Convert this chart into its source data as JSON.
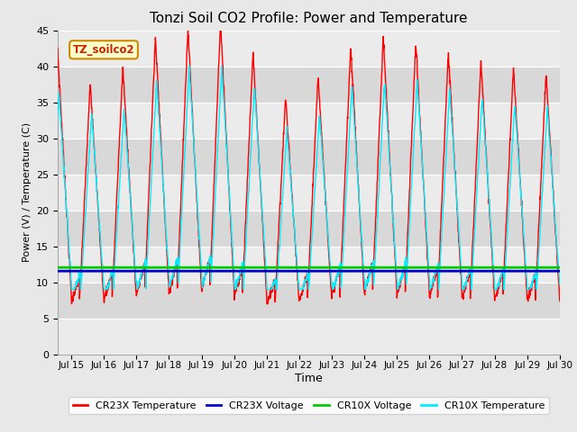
{
  "title": "Tonzi Soil CO2 Profile: Power and Temperature",
  "xlabel": "Time",
  "ylabel": "Power (V) / Temperature (C)",
  "annotation": "TZ_soilco2",
  "ylim": [
    0,
    45
  ],
  "yticks": [
    0,
    5,
    10,
    15,
    20,
    25,
    30,
    35,
    40,
    45
  ],
  "xlim_start": 14.58,
  "xlim_end": 30.0,
  "xtick_labels": [
    "Jul 15",
    "Jul 16",
    "Jul 17",
    "Jul 18",
    "Jul 19",
    "Jul 20",
    "Jul 21",
    "Jul 22",
    "Jul 23",
    "Jul 24",
    "Jul 25",
    "Jul 26",
    "Jul 27",
    "Jul 28",
    "Jul 29",
    "Jul 30"
  ],
  "xtick_positions": [
    15,
    16,
    17,
    18,
    19,
    20,
    21,
    22,
    23,
    24,
    25,
    26,
    27,
    28,
    29,
    30
  ],
  "cr23x_voltage_value": 11.55,
  "cr10x_voltage_value": 12.05,
  "cr23x_color": "#ff0000",
  "cr10x_color": "#00eeff",
  "cr23x_voltage_color": "#0000cc",
  "cr10x_voltage_color": "#00cc00",
  "bg_color": "#e8e8e8",
  "plot_bg_light": "#ebebeb",
  "plot_bg_dark": "#d8d8d8",
  "legend_labels": [
    "CR23X Temperature",
    "CR23X Voltage",
    "CR10X Voltage",
    "CR10X Temperature"
  ],
  "legend_colors": [
    "#ff0000",
    "#0000cc",
    "#00cc00",
    "#00eeff"
  ],
  "annotation_bg": "#ffffcc",
  "annotation_border": "#cc8800",
  "figwidth": 6.4,
  "figheight": 4.8,
  "dpi": 100
}
